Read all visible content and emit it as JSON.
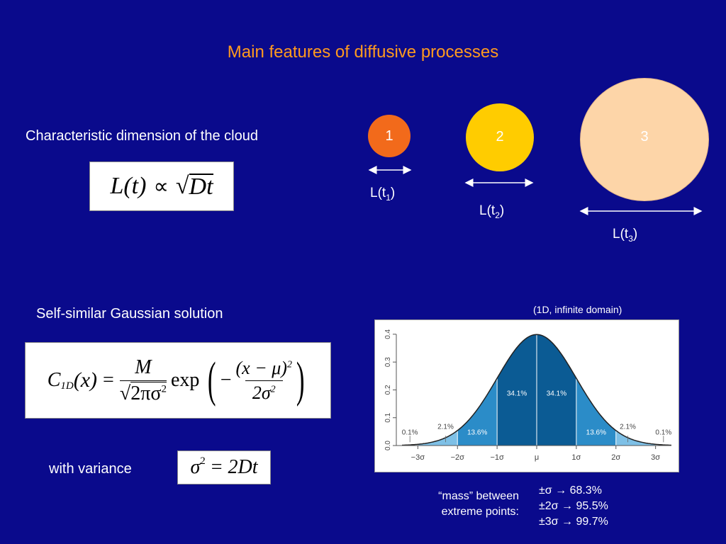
{
  "slide": {
    "title": "Main features of diffusive processes",
    "char_dim_text": "Characteristic dimension of the cloud",
    "gauss_text": "Self-similar Gaussian solution",
    "variance_text": "with variance",
    "domain_note": "(1D, infinite domain)",
    "mass_note": [
      "“mass” between",
      "extreme points:"
    ]
  },
  "equations": {
    "scaling": {
      "lhs": "L(t)",
      "prop": "∝",
      "sqrt_arg": "Dt"
    },
    "gaussian": {
      "lhs": "C",
      "lhs_sub": "1D",
      "arg": "(x)",
      "eq": "=",
      "num": "M",
      "den": "2πσ",
      "den_sup": "2",
      "exp": "exp",
      "minus": "−",
      "inner_num": "(x − μ)",
      "inner_num_sup": "2",
      "inner_den": "2σ",
      "inner_den_sup": "2"
    },
    "variance": {
      "lhs": "σ",
      "lhs_sup": "2",
      "eq": "=",
      "rhs": "2Dt"
    }
  },
  "circles": [
    {
      "label": "1",
      "color": "#f26a1b",
      "len_base": "L(t",
      "len_sub": "1",
      "len_close": ")"
    },
    {
      "label": "2",
      "color": "#ffcc00",
      "len_base": "L(t",
      "len_sub": "2",
      "len_close": ")"
    },
    {
      "label": "3",
      "color": "#fdd5a8",
      "len_base": "L(t",
      "len_sub": "3",
      "len_close": ")"
    }
  ],
  "stats": [
    {
      "range": "±σ",
      "arrow": "→",
      "value": "68.3%"
    },
    {
      "range": "±2σ",
      "arrow": "→",
      "value": "95.5%"
    },
    {
      "range": "±3σ",
      "arrow": "→",
      "value": "99.7%"
    }
  ],
  "chart_data": {
    "type": "area",
    "title": "",
    "xlabel": "",
    "ylabel": "",
    "x_ticks": [
      "−3σ",
      "−2σ",
      "−1σ",
      "μ",
      "1σ",
      "2σ",
      "3σ"
    ],
    "y_ticks": [
      "0.0",
      "0.1",
      "0.2",
      "0.3",
      "0.4"
    ],
    "xlim": [
      -3.4,
      3.4
    ],
    "ylim": [
      0,
      0.42
    ],
    "bands": [
      {
        "from": -1,
        "to": 0,
        "label": "34.1%",
        "color": "#0b5b94"
      },
      {
        "from": 0,
        "to": 1,
        "label": "34.1%",
        "color": "#0b5b94"
      },
      {
        "from": -2,
        "to": -1,
        "label": "13.6%",
        "color": "#2b8cc8"
      },
      {
        "from": 1,
        "to": 2,
        "label": "13.6%",
        "color": "#2b8cc8"
      },
      {
        "from": -3,
        "to": -2,
        "label": "2.1%",
        "color": "#7ec0e6"
      },
      {
        "from": 2,
        "to": 3,
        "label": "2.1%",
        "color": "#7ec0e6"
      },
      {
        "from": -3.4,
        "to": -3,
        "label": "0.1%",
        "color": "#c9e4f4"
      },
      {
        "from": 3,
        "to": 3.4,
        "label": "0.1%",
        "color": "#c9e4f4"
      }
    ]
  }
}
